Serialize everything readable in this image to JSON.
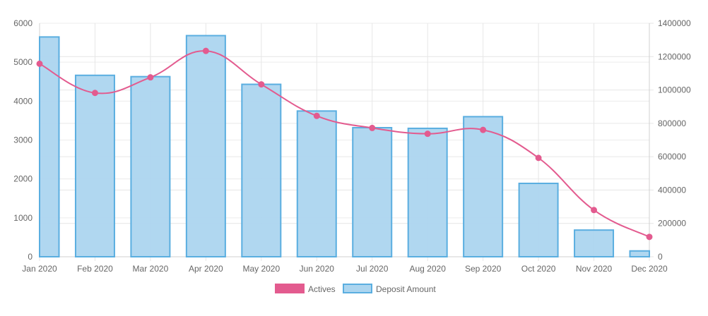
{
  "chart_data": {
    "type": "bar",
    "categories": [
      "Jan 2020",
      "Feb 2020",
      "Mar 2020",
      "Apr 2020",
      "May 2020",
      "Jun 2020",
      "Jul 2020",
      "Aug 2020",
      "Sep 2020",
      "Oct 2020",
      "Nov 2020",
      "Dec 2020"
    ],
    "y_left": {
      "ylim": [
        0,
        6000
      ],
      "ticks": [
        0,
        1000,
        2000,
        3000,
        4000,
        5000,
        6000
      ]
    },
    "y_right": {
      "ylim": [
        0,
        1400000
      ],
      "ticks": [
        0,
        200000,
        400000,
        600000,
        800000,
        1000000,
        1200000,
        1400000
      ]
    },
    "grid": true,
    "legend_position": "bottom",
    "series": [
      {
        "name": "Actives",
        "type": "line",
        "axis": "left",
        "color": "#e35b8f",
        "values": [
          4960,
          4210,
          4610,
          5290,
          4430,
          3620,
          3310,
          3160,
          3260,
          2540,
          1200,
          510
        ]
      },
      {
        "name": "Deposit Amount",
        "type": "bar",
        "axis": "right",
        "color": "#5aaee0",
        "fill": "#acd5ef",
        "values": [
          1318000,
          1088000,
          1080000,
          1326000,
          1034000,
          874000,
          774000,
          770000,
          840000,
          440000,
          160000,
          35000
        ]
      }
    ]
  }
}
